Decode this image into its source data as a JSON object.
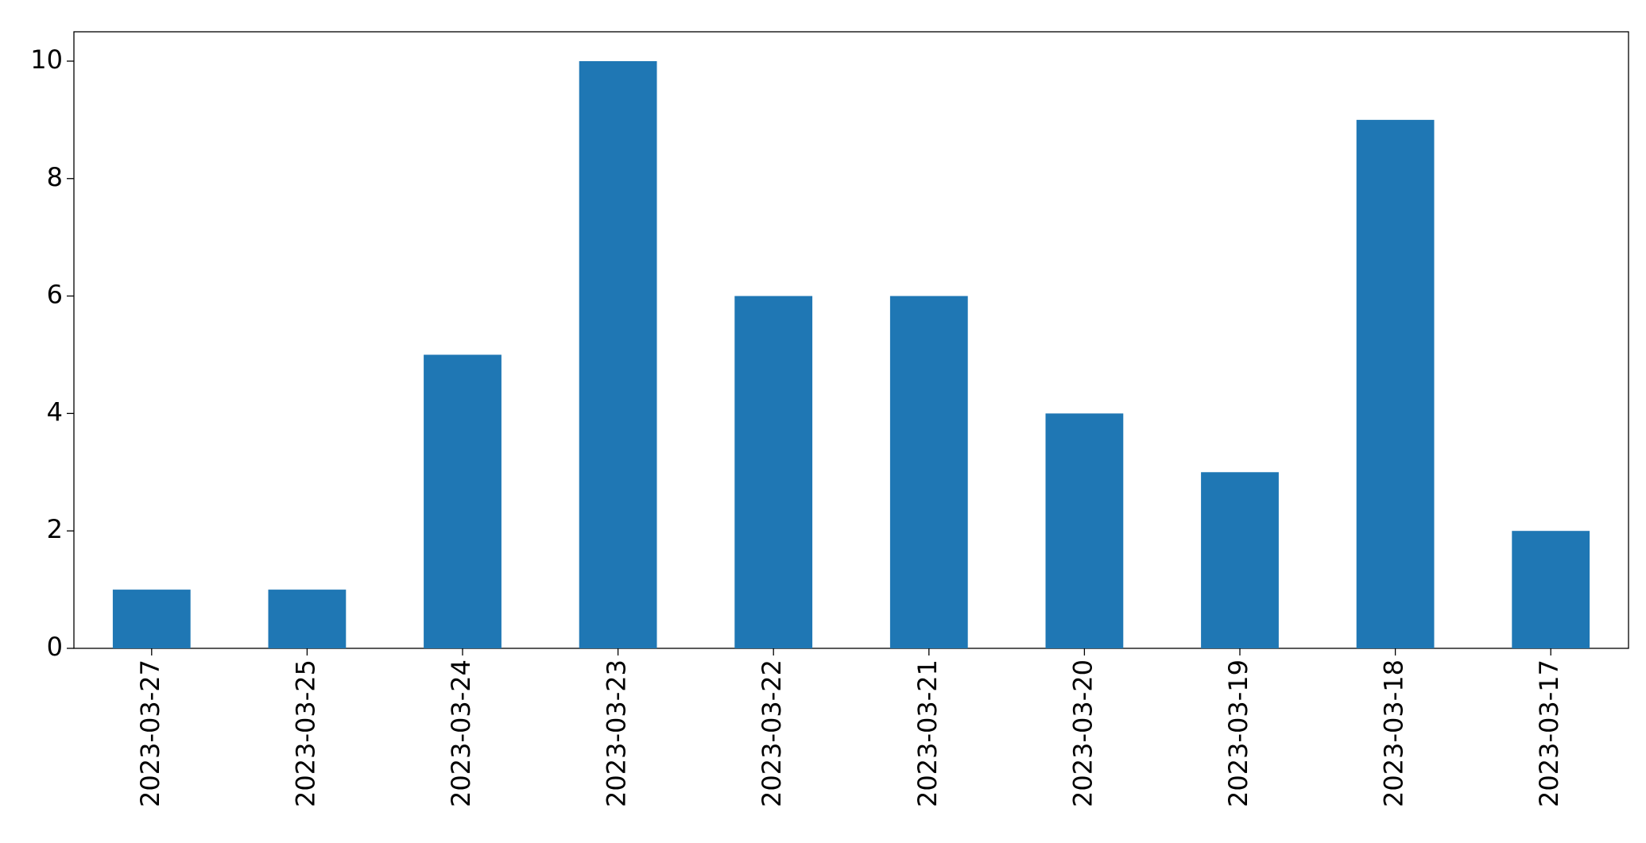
{
  "chart_data": {
    "type": "bar",
    "categories": [
      "2023-03-27",
      "2023-03-25",
      "2023-03-24",
      "2023-03-23",
      "2023-03-22",
      "2023-03-21",
      "2023-03-20",
      "2023-03-19",
      "2023-03-18",
      "2023-03-17"
    ],
    "values": [
      1,
      1,
      5,
      10,
      6,
      6,
      4,
      3,
      9,
      2
    ],
    "color": "#1f77b4",
    "ylim": [
      0,
      10.5
    ],
    "yticks": [
      0,
      2,
      4,
      6,
      8,
      10
    ],
    "grid": false
  }
}
